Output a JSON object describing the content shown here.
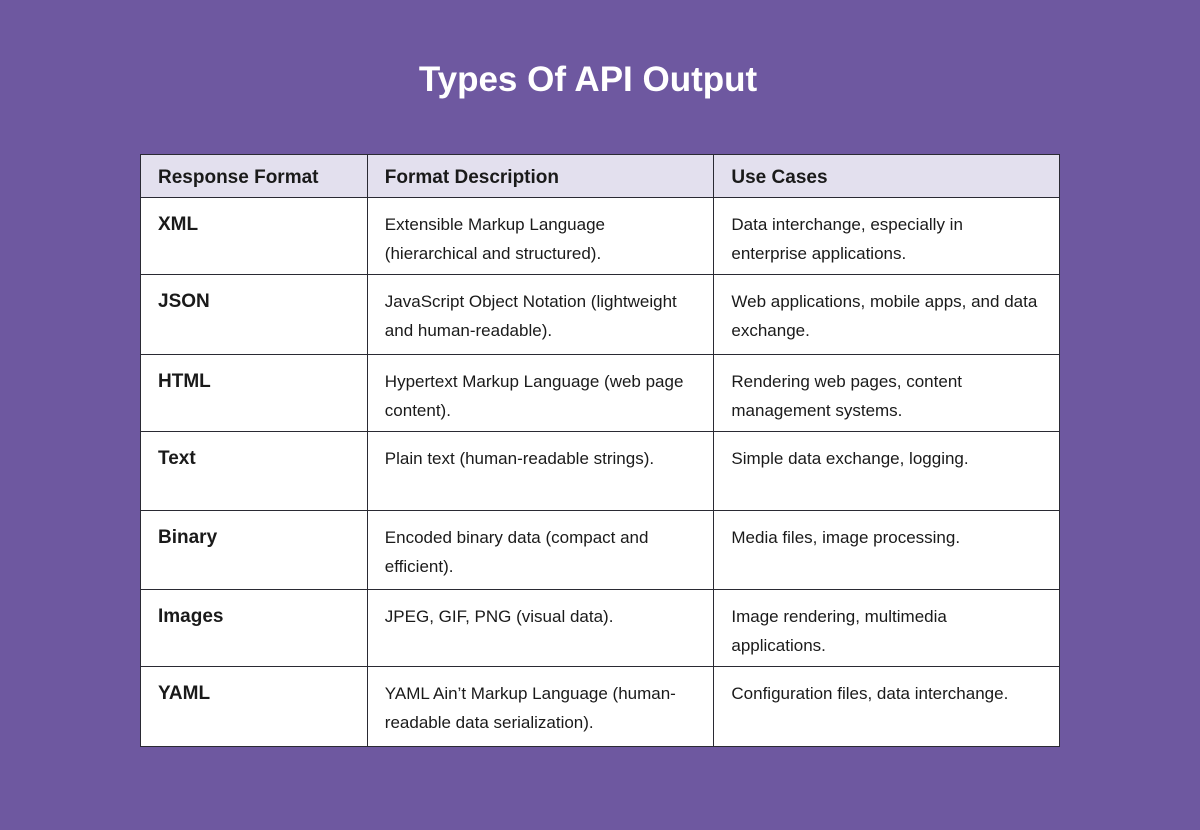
{
  "title": "Types Of API Output",
  "columns": [
    "Response Format",
    "Format Description",
    "Use Cases"
  ],
  "rows": [
    {
      "format": "XML",
      "description": "Extensible Markup Language (hierarchical and structured).",
      "use_cases": "Data interchange, especially in enterprise applications."
    },
    {
      "format": "JSON",
      "description": "JavaScript Object Notation (lightweight and human-readable).",
      "use_cases": "Web applications, mobile apps, and data exchange."
    },
    {
      "format": "HTML",
      "description": "Hypertext Markup Language (web page content).",
      "use_cases": "Rendering web pages, content management systems."
    },
    {
      "format": "Text",
      "description": "Plain text (human-readable strings).",
      "use_cases": "Simple data exchange, logging."
    },
    {
      "format": "Binary",
      "description": "Encoded binary data (compact and efficient).",
      "use_cases": "Media files, image processing."
    },
    {
      "format": "Images",
      "description": "JPEG, GIF, PNG (visual data).",
      "use_cases": "Image rendering, multimedia applications."
    },
    {
      "format": "YAML",
      "description": "YAML Ain’t Markup Language (human-readable data serialization).",
      "use_cases": "Configuration files, data interchange."
    }
  ],
  "colors": {
    "background": "#6e58a0",
    "header": "#e3e0ee",
    "border": "#2a2a33"
  }
}
